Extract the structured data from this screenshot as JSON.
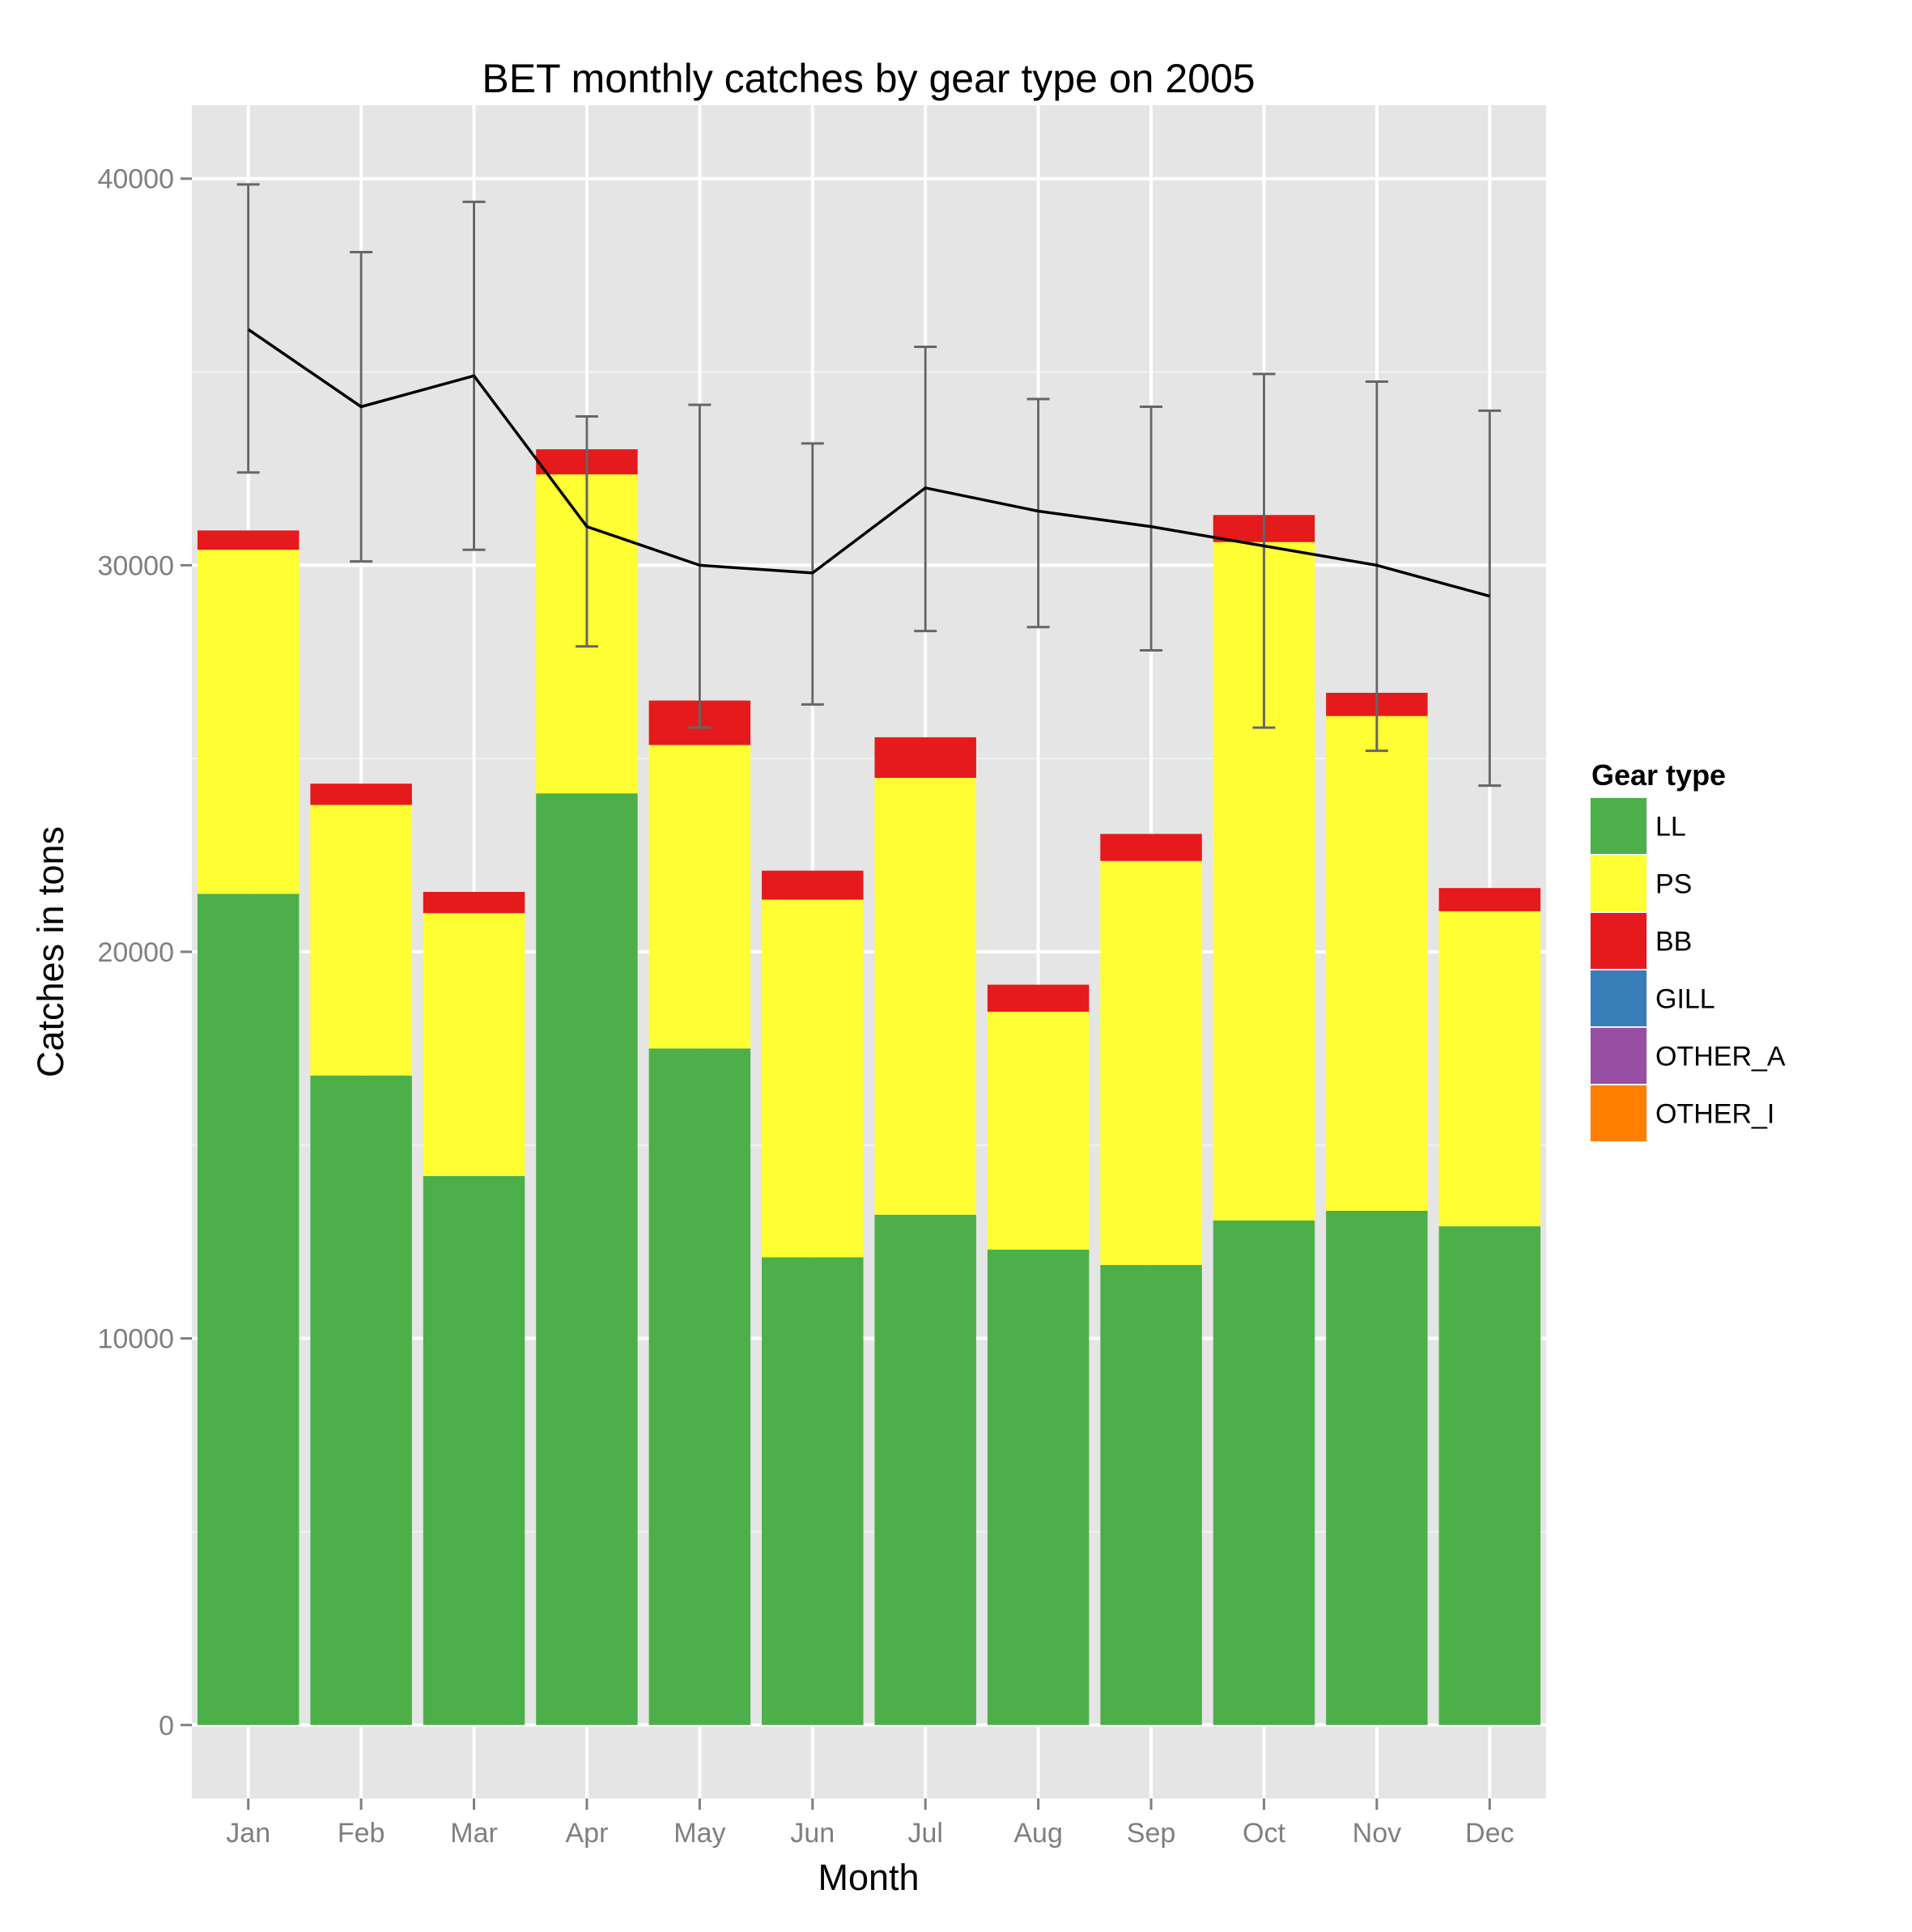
{
  "chart_data": {
    "type": "bar",
    "stacked": true,
    "title": "BET monthly catches by gear type on 2005",
    "xlabel": "Month",
    "ylabel": "Catches in tons",
    "categories": [
      "Jan",
      "Feb",
      "Mar",
      "Apr",
      "May",
      "Jun",
      "Jul",
      "Aug",
      "Sep",
      "Oct",
      "Nov",
      "Dec"
    ],
    "y_ticks": [
      "0",
      "10000",
      "20000",
      "30000",
      "40000"
    ],
    "ylim": [
      -1900,
      41900
    ],
    "grid": true,
    "legend": {
      "title": "Gear type",
      "position": "right",
      "items": [
        {
          "name": "LL",
          "color": "#4daf4a"
        },
        {
          "name": "PS",
          "color": "#ffff33"
        },
        {
          "name": "BB",
          "color": "#e41a1c"
        },
        {
          "name": "GILL",
          "color": "#377eb8"
        },
        {
          "name": "OTHER_A",
          "color": "#984ea3"
        },
        {
          "name": "OTHER_I",
          "color": "#ff7f00"
        }
      ]
    },
    "series": [
      {
        "name": "LL",
        "color": "#4daf4a",
        "values": [
          21500,
          16800,
          14200,
          24100,
          17500,
          12100,
          13200,
          12300,
          11900,
          13050,
          13300,
          12900
        ]
      },
      {
        "name": "PS",
        "color": "#ffff33",
        "values": [
          8900,
          7000,
          6800,
          8250,
          7850,
          9250,
          11300,
          6150,
          10450,
          17550,
          12800,
          8150
        ]
      },
      {
        "name": "BB",
        "color": "#e41a1c",
        "values": [
          500,
          550,
          550,
          650,
          1150,
          750,
          1050,
          700,
          700,
          700,
          600,
          600
        ]
      },
      {
        "name": "GILL",
        "color": "#377eb8",
        "values": [
          0,
          0,
          0,
          0,
          0,
          0,
          0,
          0,
          0,
          0,
          0,
          0
        ]
      },
      {
        "name": "OTHER_A",
        "color": "#984ea3",
        "values": [
          0,
          0,
          0,
          0,
          0,
          0,
          0,
          0,
          0,
          0,
          0,
          0
        ]
      },
      {
        "name": "OTHER_I",
        "color": "#ff7f00",
        "values": [
          0,
          0,
          0,
          0,
          0,
          0,
          0,
          0,
          0,
          0,
          0,
          0
        ]
      }
    ],
    "line": {
      "color": "#000000",
      "mean": [
        36100,
        34100,
        34900,
        31000,
        30000,
        29800,
        32000,
        31400,
        31000,
        30500,
        30000,
        29200
      ],
      "lower": [
        32400,
        30100,
        30400,
        27900,
        25800,
        26400,
        28300,
        28400,
        27800,
        25800,
        25200,
        24300
      ],
      "upper": [
        39850,
        38100,
        39400,
        33850,
        34150,
        33150,
        35650,
        34300,
        34100,
        34950,
        34750,
        34000
      ],
      "errorbar_color": "#666666"
    }
  }
}
